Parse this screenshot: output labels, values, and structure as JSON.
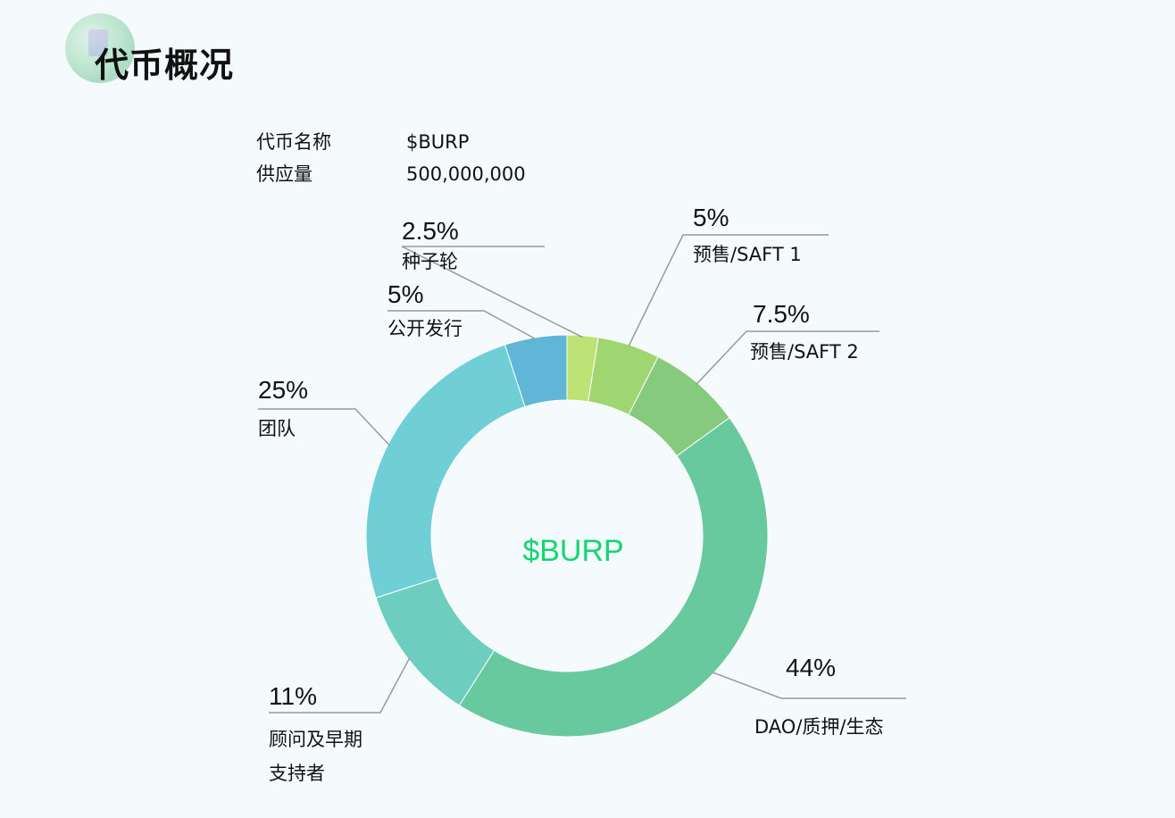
{
  "header": {
    "title": "代币概况"
  },
  "token_info": {
    "name_label": "代币名称",
    "name_value": "$BURP",
    "supply_label": "供应量",
    "supply_value": "500,000,000"
  },
  "chart_data": {
    "type": "pie",
    "center_label": "$BURP",
    "slices": [
      {
        "label": "种子轮",
        "percent_text": "2.5%",
        "value": 2.5,
        "color": "#bde276"
      },
      {
        "label": "预售/SAFT 1",
        "percent_text": "5%",
        "value": 5,
        "color": "#a0d672"
      },
      {
        "label": "预售/SAFT 2",
        "percent_text": "7.5%",
        "value": 7.5,
        "color": "#86ca7e"
      },
      {
        "label": "DAO/质押/生态",
        "percent_text": "44%",
        "value": 44,
        "color": "#68c99e"
      },
      {
        "label": "顾问及早期支持者",
        "percent_text": "11%",
        "value": 11,
        "color": "#6dcebf"
      },
      {
        "label": "团队",
        "percent_text": "25%",
        "value": 25,
        "color": "#70ced6"
      },
      {
        "label": "公开发行",
        "percent_text": "5%",
        "value": 5,
        "color": "#5fb6d6"
      }
    ],
    "colors": {
      "center_label": "#12d672",
      "leader_line": "#9a9a9a"
    }
  }
}
